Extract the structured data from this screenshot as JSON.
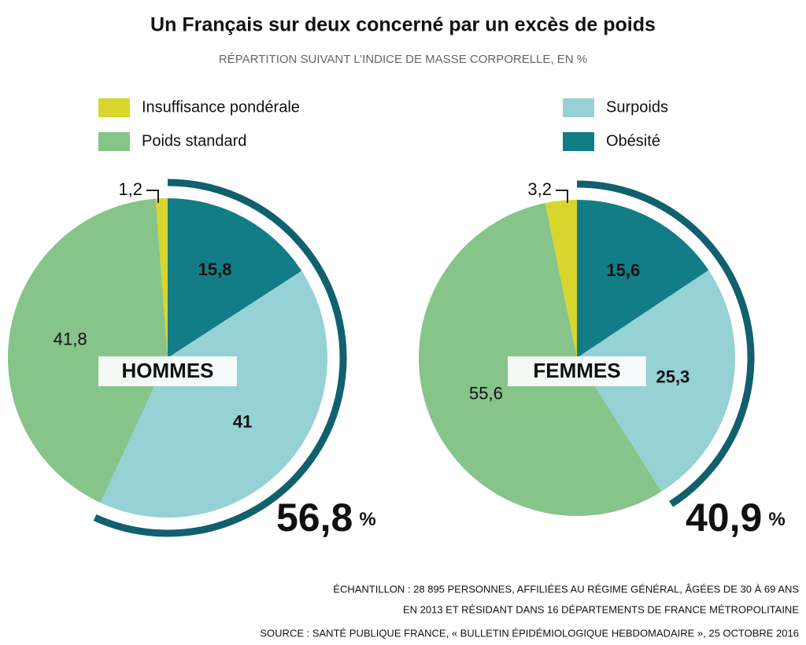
{
  "title": "Un Français sur deux concerné par un excès de poids",
  "subtitle": "RÉPARTITION SUIVANT L’INDICE DE MASSE CORPORELLE, EN %",
  "notes": [
    "ÉCHANTILLON : 28 895 PERSONNES, AFFILIÉES AU RÉGIME GÉNÉRAL, ÂGÉES DE 30 À 69 ANS",
    "EN 2013 ET RÉSIDANT DANS 16 DÉPARTEMENTS DE FRANCE MÉTROPOLITAINE",
    "SOURCE :  SANTÉ PUBLIQUE FRANCE, « BULLETIN ÉPIDÉMIOLOGIQUE HEBDOMADAIRE », 25 OCTOBRE 2016"
  ],
  "chart_data": [
    {
      "type": "pie",
      "label": "HOMMES",
      "categories": [
        "Insuffisance pondérale",
        "Poids standard",
        "Surpoids",
        "Obésité"
      ],
      "values": [
        1.2,
        41.8,
        41,
        15.8
      ],
      "value_labels": [
        "1,2",
        "41,8",
        "41",
        "15,8"
      ],
      "colors": [
        "#d8d62c",
        "#86c48a",
        "#95d1d5",
        "#137d87"
      ],
      "total": 56.8,
      "total_label": "56,8",
      "unit": "%",
      "ring_color": "#10606e"
    },
    {
      "type": "pie",
      "label": "FEMMES",
      "categories": [
        "Insuffisance pondérale",
        "Poids standard",
        "Surpoids",
        "Obésité"
      ],
      "values": [
        3.2,
        55.6,
        25.3,
        15.6
      ],
      "value_labels": [
        "3,2",
        "55,6",
        "25,3",
        "15,6"
      ],
      "colors": [
        "#d8d62c",
        "#86c48a",
        "#95d1d5",
        "#137d87"
      ],
      "total": 40.9,
      "total_label": "40,9",
      "unit": "%",
      "ring_color": "#10606e"
    }
  ]
}
